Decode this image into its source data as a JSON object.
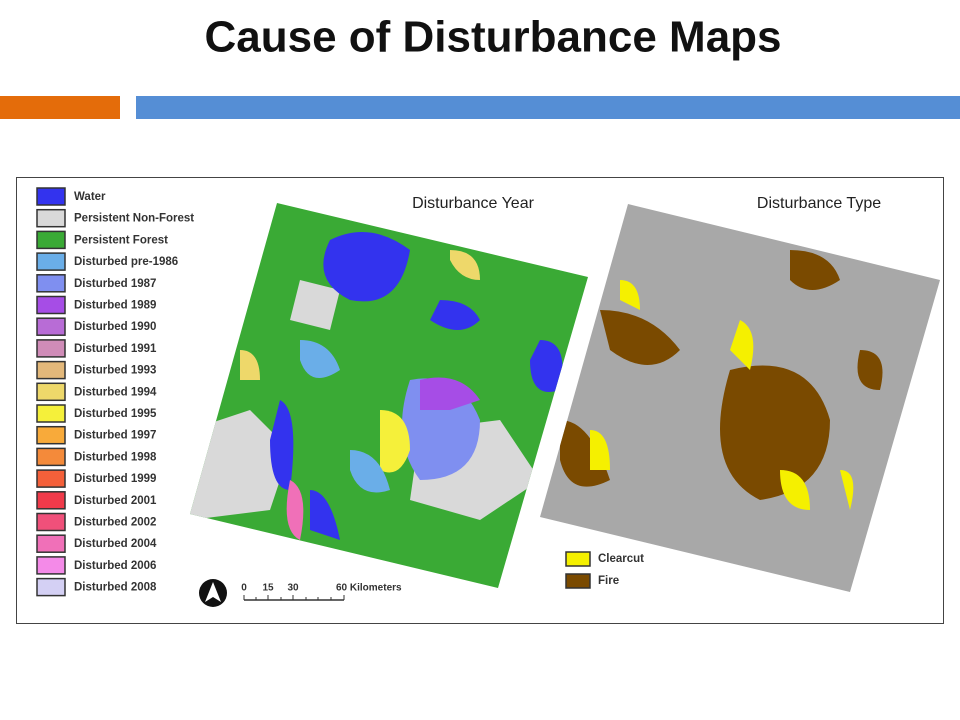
{
  "header": {
    "title": "Cause of Disturbance Maps"
  },
  "figure": {
    "panel_labels": [
      "Disturbance Year",
      "Disturbance Type"
    ],
    "year_legend": [
      {
        "label": "Water",
        "color": "#3333ee"
      },
      {
        "label": "Persistent Non-Forest",
        "color": "#d9d9d9"
      },
      {
        "label": "Persistent Forest",
        "color": "#3aaa35"
      },
      {
        "label": "Disturbed pre-1986",
        "color": "#6aaee8"
      },
      {
        "label": "Disturbed 1987",
        "color": "#7f8ff0"
      },
      {
        "label": "Disturbed 1989",
        "color": "#a64de6"
      },
      {
        "label": "Disturbed 1990",
        "color": "#b86cd6"
      },
      {
        "label": "Disturbed 1991",
        "color": "#d08cb8"
      },
      {
        "label": "Disturbed 1993",
        "color": "#e3b87a"
      },
      {
        "label": "Disturbed 1994",
        "color": "#eed86a"
      },
      {
        "label": "Disturbed 1995",
        "color": "#f5f03a"
      },
      {
        "label": "Disturbed 1997",
        "color": "#f8aa3a"
      },
      {
        "label": "Disturbed 1998",
        "color": "#f48a3a"
      },
      {
        "label": "Disturbed 1999",
        "color": "#f4603a"
      },
      {
        "label": "Disturbed 2001",
        "color": "#f03a4a"
      },
      {
        "label": "Disturbed 2002",
        "color": "#f0507a"
      },
      {
        "label": "Disturbed 2004",
        "color": "#f070b8"
      },
      {
        "label": "Disturbed 2006",
        "color": "#f48ae8"
      },
      {
        "label": "Disturbed 2008",
        "color": "#d4d0f4"
      }
    ],
    "type_legend": [
      {
        "label": "Clearcut",
        "color": "#f5f000"
      },
      {
        "label": "Fire",
        "color": "#7a4a00"
      }
    ],
    "scale_bar": [
      "0",
      "15",
      "30",
      "60 Kilometers"
    ]
  }
}
